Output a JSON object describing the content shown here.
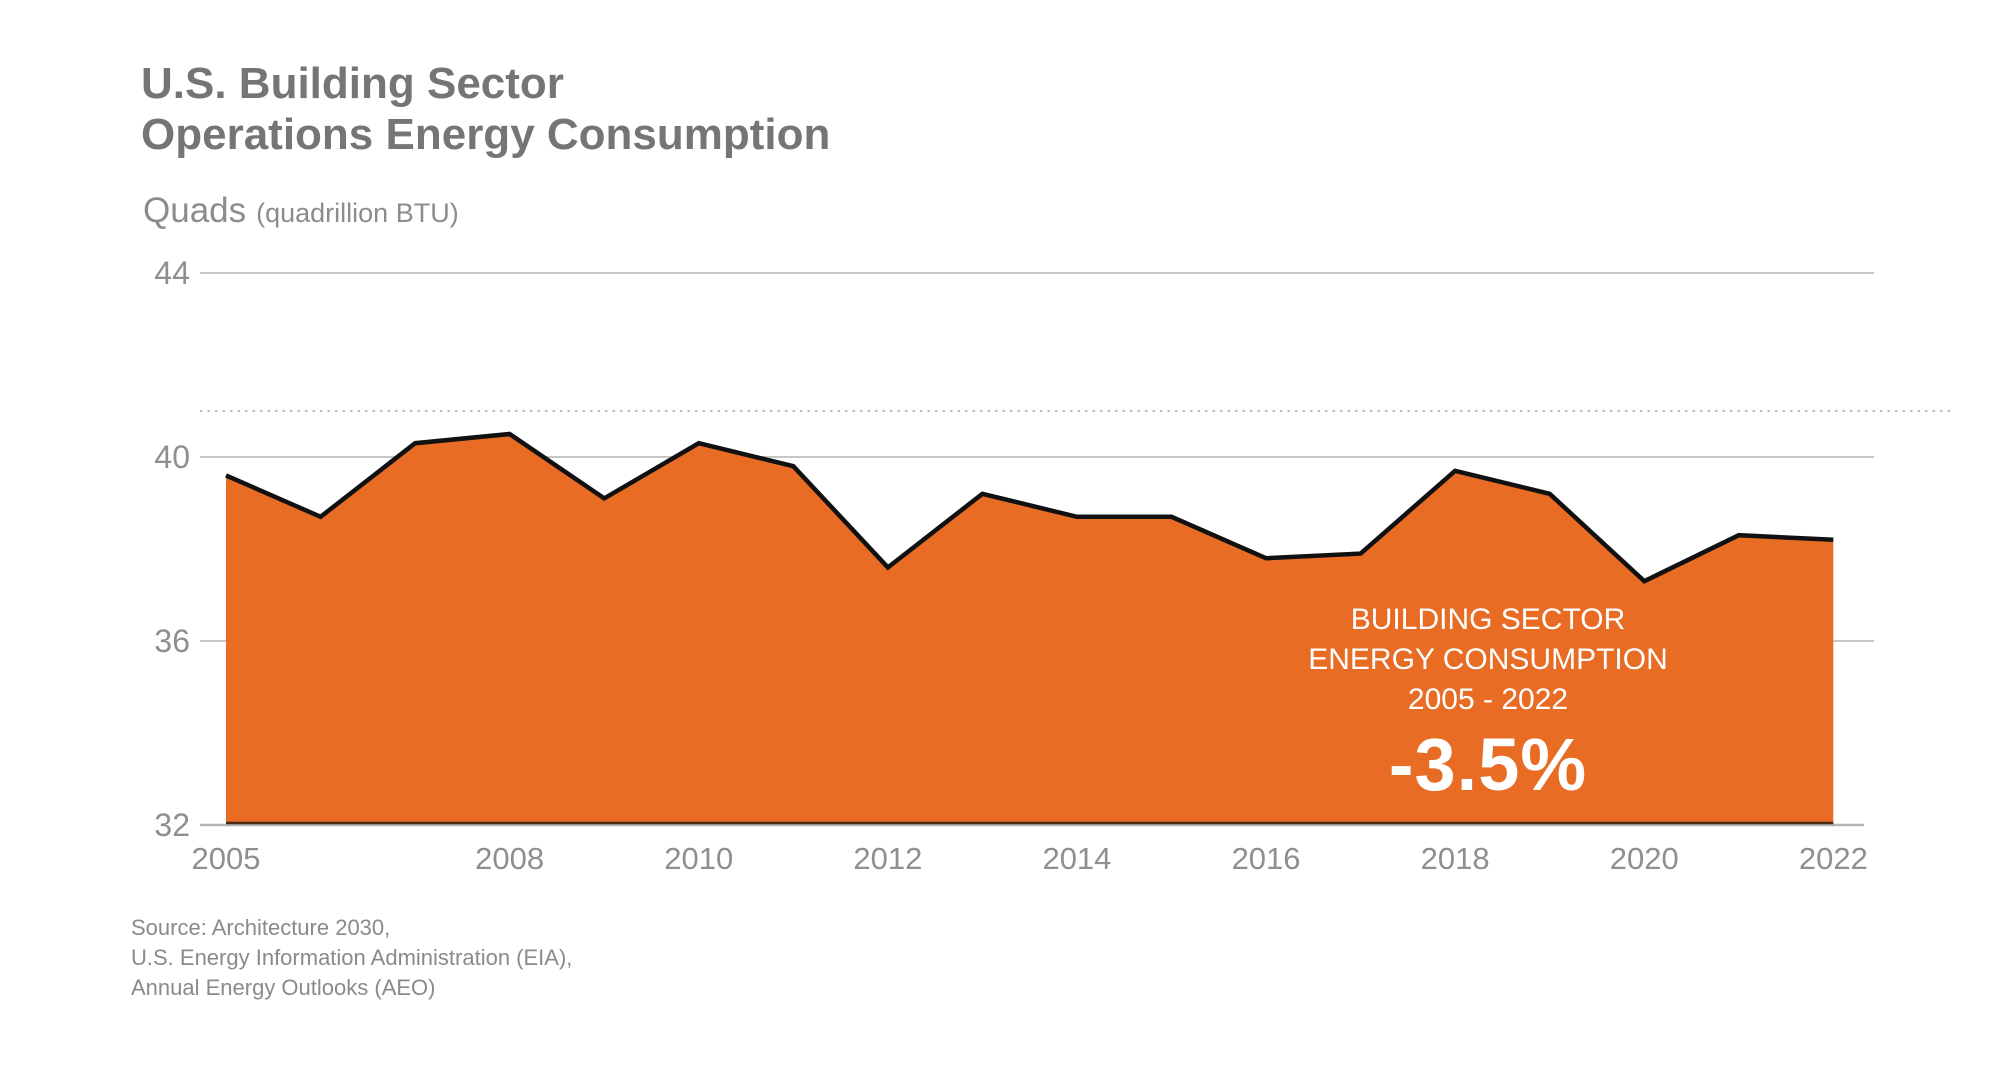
{
  "title": {
    "line1": "U.S. Building Sector",
    "line2": "Operations Energy Consumption"
  },
  "unit": {
    "main": "Quads",
    "sub": "(quadrillion BTU)"
  },
  "annotation": {
    "line1": "BUILDING SECTOR",
    "line2": "ENERGY CONSUMPTION",
    "line3": "2005 - 2022",
    "value": "-3.5%"
  },
  "source": {
    "line1": "Source: Architecture 2030,",
    "line2": "U.S. Energy Information Administration (EIA),",
    "line3": "Annual Energy Outlooks (AEO)"
  },
  "colors": {
    "area_fill": "#E86C24",
    "data_line": "#111111",
    "area_bottom_edge": "#4A2A12",
    "gridline": "#C6C6C6",
    "dotted_line": "#BDBDBD",
    "axis_text": "#8F8F8F",
    "annotation_text": "#FFFFFF"
  },
  "chart_data": {
    "type": "area",
    "title": "U.S. Building Sector Operations Energy Consumption",
    "ylabel": "Quads (quadrillion BTU)",
    "x": [
      2005,
      2006,
      2007,
      2008,
      2009,
      2010,
      2011,
      2012,
      2013,
      2014,
      2015,
      2016,
      2017,
      2018,
      2019,
      2020,
      2021,
      2022
    ],
    "values": [
      39.6,
      38.7,
      40.3,
      40.5,
      39.1,
      40.3,
      39.8,
      37.6,
      39.2,
      38.7,
      38.7,
      37.8,
      37.9,
      39.7,
      39.2,
      37.3,
      38.3,
      38.2
    ],
    "ylim": [
      32,
      44
    ],
    "yticks": [
      32,
      36,
      40,
      44
    ],
    "xticks": [
      2005,
      2008,
      2010,
      2012,
      2014,
      2016,
      2018,
      2020,
      2022
    ],
    "reference_line_value": 41,
    "grid": "horizontal",
    "legend": "none",
    "percent_change_2005_2022": "-3.5%"
  }
}
